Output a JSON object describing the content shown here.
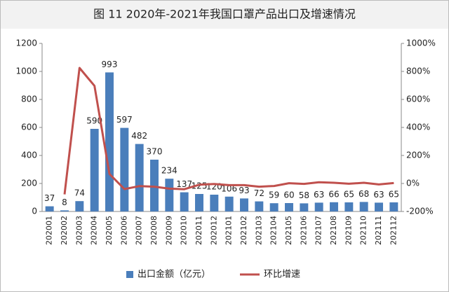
{
  "chart_data": {
    "type": "bar",
    "title": "图 11 2020年-2021年我国口罩产品出口及增速情况",
    "categories": [
      "202001",
      "202002",
      "202003",
      "202004",
      "202005",
      "202006",
      "202007",
      "202008",
      "202009",
      "202010",
      "202011",
      "202012",
      "202101",
      "202102",
      "202103",
      "202104",
      "202105",
      "202106",
      "202107",
      "202108",
      "202109",
      "202110",
      "202111",
      "202112"
    ],
    "series": [
      {
        "name": "出口金额（亿元）",
        "type": "bar",
        "color": "#4a7ebb",
        "values": [
          37,
          8,
          74,
          590,
          993,
          597,
          482,
          370,
          234,
          137,
          125,
          120,
          106,
          93,
          72,
          59,
          60,
          58,
          63,
          66,
          65,
          68,
          63,
          65
        ]
      },
      {
        "name": "环比增速",
        "type": "line",
        "axis": "y2",
        "color": "#c0504d",
        "values": [
          null,
          -78,
          825,
          697,
          68,
          -40,
          -19,
          -23,
          -37,
          -41,
          -9,
          -4,
          -12,
          -12,
          -23,
          -18,
          2,
          -3,
          9,
          5,
          -2,
          5,
          -7,
          3
        ]
      }
    ],
    "ylim": [
      0,
      1200
    ],
    "yticks": [
      0,
      200,
      400,
      600,
      800,
      1000,
      1200
    ],
    "y2lim": [
      -200,
      1000
    ],
    "y2ticks": [
      {
        "value": -200,
        "label": "-200%"
      },
      {
        "value": 0,
        "label": "0%"
      },
      {
        "value": 200,
        "label": "200%"
      },
      {
        "value": 400,
        "label": "400%"
      },
      {
        "value": 600,
        "label": "600%"
      },
      {
        "value": 800,
        "label": "800%"
      },
      {
        "value": 1000,
        "label": "1000%"
      }
    ],
    "legend": "bottom",
    "grid": false
  }
}
